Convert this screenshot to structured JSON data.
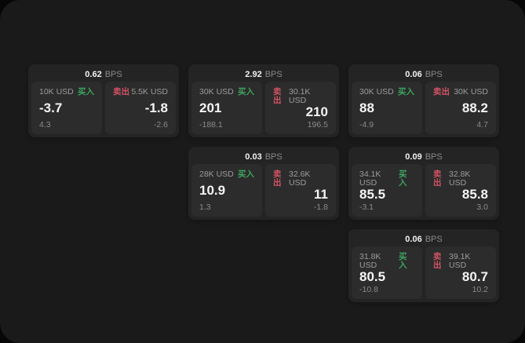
{
  "labels": {
    "bps_unit": "BPS",
    "buy": "买入",
    "sell": "卖出"
  },
  "colors": {
    "buy_green": "#3ca55f",
    "sell_red": "#d05365",
    "surface": "#1a1a1a",
    "card": "#242424",
    "panel": "#2c2c2c",
    "muted_text": "#9c9c9c",
    "value_text": "#f5f5f5"
  },
  "cards": [
    {
      "bps": "0.62",
      "buy": {
        "size": "10K USD",
        "value": "-3.7",
        "delta": "4.3"
      },
      "sell": {
        "size": "5.5K USD",
        "value": "-1.8",
        "delta": "-2.6"
      }
    },
    {
      "bps": "2.92",
      "buy": {
        "size": "30K USD",
        "value": "201",
        "delta": "-188.1"
      },
      "sell": {
        "size": "30.1K USD",
        "value": "210",
        "delta": "196.5"
      }
    },
    {
      "bps": "0.06",
      "buy": {
        "size": "30K USD",
        "value": "88",
        "delta": "-4.9"
      },
      "sell": {
        "size": "30K USD",
        "value": "88.2",
        "delta": "4.7"
      }
    },
    {
      "bps": "0.03",
      "buy": {
        "size": "28K USD",
        "value": "10.9",
        "delta": "1.3"
      },
      "sell": {
        "size": "32.6K USD",
        "value": "11",
        "delta": "-1.8"
      }
    },
    {
      "bps": "0.09",
      "buy": {
        "size": "34.1K USD",
        "value": "85.5",
        "delta": "-3.1"
      },
      "sell": {
        "size": "32.8K USD",
        "value": "85.8",
        "delta": "3.0"
      }
    },
    {
      "bps": "0.06",
      "buy": {
        "size": "31.8K USD",
        "value": "80.5",
        "delta": "-10.8"
      },
      "sell": {
        "size": "39.1K USD",
        "value": "80.7",
        "delta": "10.2"
      }
    }
  ]
}
